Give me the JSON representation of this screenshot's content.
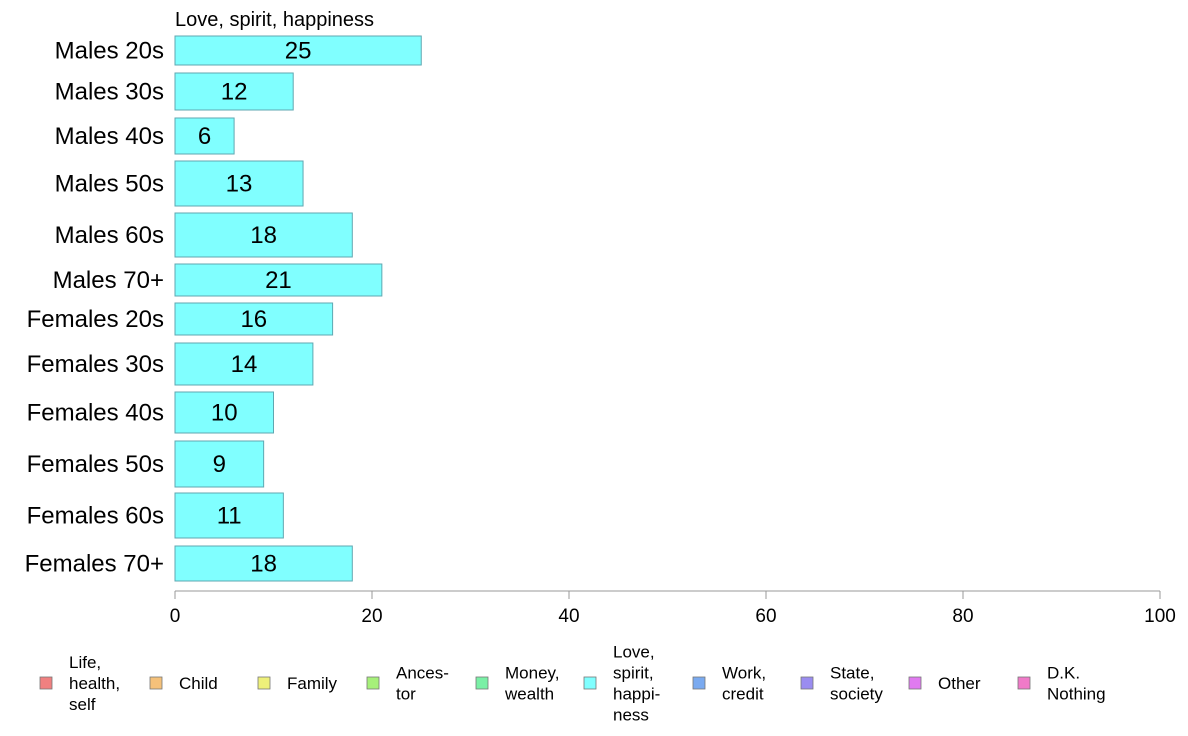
{
  "chart_data": {
    "type": "bar",
    "orientation": "horizontal",
    "panel_title": "Love, spirit, happiness",
    "categories": [
      "Males 20s",
      "Males 30s",
      "Males 40s",
      "Males 50s",
      "Males 60s",
      "Males 70+",
      "Females 20s",
      "Females 30s",
      "Females 40s",
      "Females 50s",
      "Females 60s",
      "Females 70+"
    ],
    "values": [
      25,
      12,
      6,
      13,
      18,
      21,
      16,
      14,
      10,
      9,
      11,
      18
    ],
    "xlim": [
      0,
      100
    ],
    "xticks": [
      "0",
      "20",
      "40",
      "60",
      "80",
      "100"
    ],
    "xlabel": "",
    "ylabel": "",
    "bar_color": "#80ffff",
    "bar_stroke": "#5fa7b0",
    "axis_color": "#999999",
    "legend": {
      "placement": "bottom",
      "entries": [
        {
          "lines": [
            "Life,",
            "health,",
            "self"
          ],
          "color": "#f08080"
        },
        {
          "lines": [
            "Child"
          ],
          "color": "#f5c17a"
        },
        {
          "lines": [
            "Family"
          ],
          "color": "#eef07a"
        },
        {
          "lines": [
            "Ances-",
            "tor"
          ],
          "color": "#a6f07a"
        },
        {
          "lines": [
            "Money,",
            "wealth"
          ],
          "color": "#7af0a6"
        },
        {
          "lines": [
            "Love,",
            "spirit,",
            "happi-",
            "ness"
          ],
          "color": "#80ffff"
        },
        {
          "lines": [
            "Work,",
            "credit"
          ],
          "color": "#7aaaf0"
        },
        {
          "lines": [
            "State,",
            "society"
          ],
          "color": "#9a8cf0"
        },
        {
          "lines": [
            "Other"
          ],
          "color": "#e07af0"
        },
        {
          "lines": [
            "D.K.",
            "Nothing"
          ],
          "color": "#f07ac8"
        }
      ]
    }
  }
}
